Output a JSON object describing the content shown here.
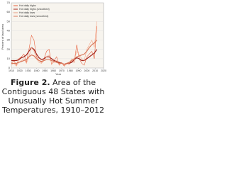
{
  "chart_data": {
    "type": "line",
    "caption_label": "Figure 2.",
    "caption": "Area of the Contiguous 48 States with Unusually Hot Summer Temperatures, 1910–2012",
    "xlabel": "Year",
    "ylabel": "Percent of land area",
    "x": [
      1910,
      1913,
      1916,
      1919,
      1922,
      1925,
      1928,
      1931,
      1934,
      1937,
      1940,
      1943,
      1946,
      1949,
      1952,
      1955,
      1958,
      1961,
      1964,
      1967,
      1970,
      1973,
      1976,
      1979,
      1982,
      1985,
      1988,
      1991,
      1994,
      1997,
      2000,
      2003,
      2006,
      2009,
      2012
    ],
    "series": [
      {
        "name": "Hot daily highs",
        "color": "#e8603c",
        "values": [
          5,
          8,
          3,
          10,
          12,
          15,
          6,
          20,
          35,
          30,
          12,
          8,
          6,
          10,
          18,
          20,
          4,
          8,
          12,
          3,
          6,
          2,
          5,
          4,
          8,
          6,
          25,
          10,
          5,
          3,
          12,
          15,
          18,
          10,
          45
        ]
      },
      {
        "name": "Hot daily highs (smoothed)",
        "color": "#a3231a",
        "values": [
          8,
          8,
          8,
          9,
          11,
          12,
          14,
          18,
          22,
          20,
          15,
          11,
          9,
          10,
          12,
          12,
          10,
          8,
          7,
          6,
          5,
          4,
          5,
          5,
          6,
          9,
          11,
          10,
          8,
          8,
          10,
          12,
          14,
          16,
          20
        ]
      },
      {
        "name": "Hot daily lows",
        "color": "#f6a88a",
        "values": [
          3,
          5,
          2,
          6,
          8,
          10,
          5,
          12,
          22,
          18,
          10,
          6,
          5,
          8,
          12,
          14,
          5,
          6,
          8,
          4,
          5,
          3,
          4,
          5,
          10,
          8,
          18,
          14,
          10,
          8,
          20,
          25,
          30,
          22,
          50
        ]
      },
      {
        "name": "Hot daily lows (smoothed)",
        "color": "#d9785a",
        "values": [
          5,
          5,
          5,
          6,
          7,
          8,
          9,
          12,
          14,
          13,
          10,
          8,
          7,
          8,
          9,
          9,
          8,
          7,
          6,
          5,
          5,
          4,
          5,
          6,
          8,
          10,
          12,
          13,
          14,
          15,
          18,
          22,
          25,
          27,
          30
        ]
      }
    ],
    "xlim": [
      1910,
      2020
    ],
    "xticks": [
      1910,
      1920,
      1930,
      1940,
      1950,
      1960,
      1970,
      1980,
      1990,
      2000,
      2010,
      2020
    ],
    "ylim": [
      0,
      70
    ],
    "yticks": [
      0,
      10,
      20,
      30,
      40,
      50,
      60,
      70
    ],
    "grid": true,
    "legend": "top-left"
  }
}
